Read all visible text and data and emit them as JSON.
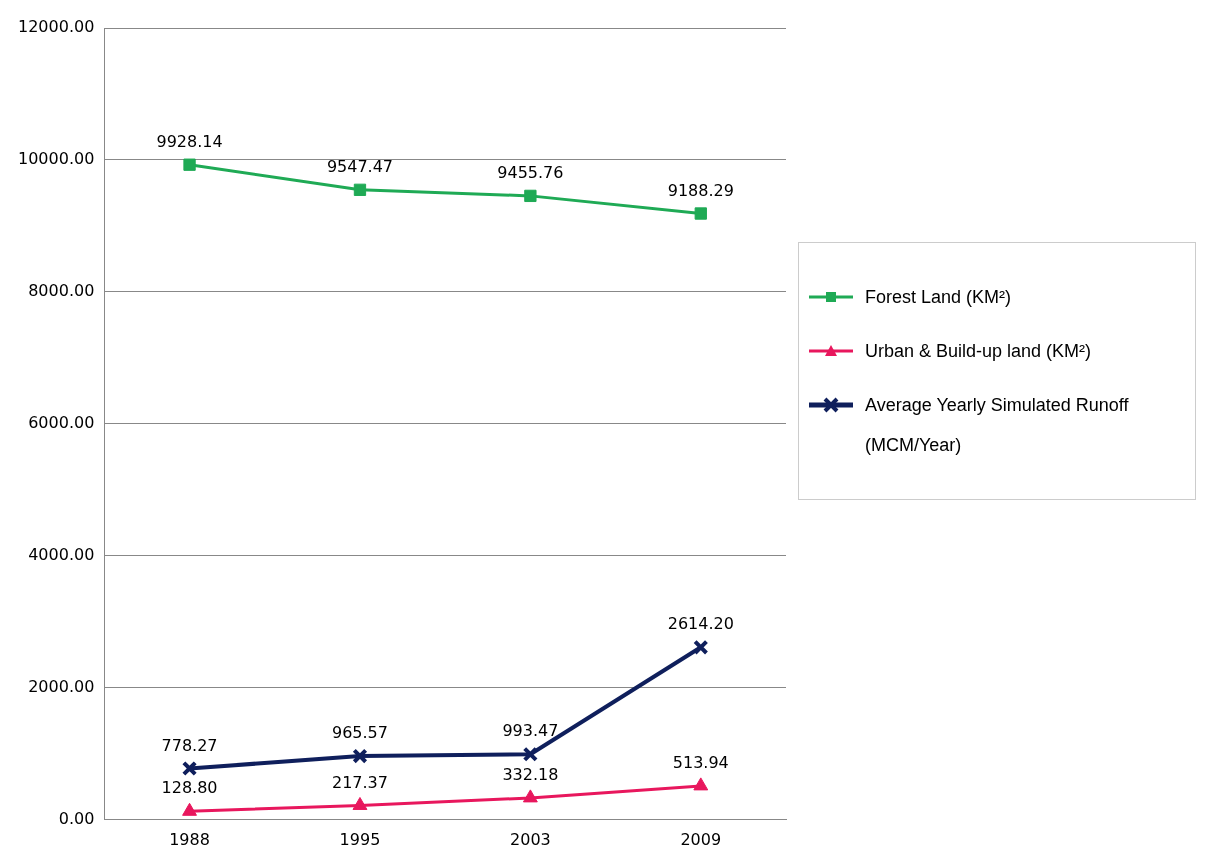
{
  "chart_data": {
    "type": "line",
    "categories": [
      "1988",
      "1995",
      "2003",
      "2009"
    ],
    "series": [
      {
        "name": "Forest Land (KM²)",
        "color": "#1faa55",
        "marker": "square",
        "values": [
          9928.14,
          9547.47,
          9455.76,
          9188.29
        ],
        "value_labels": [
          "9928.14",
          "9547.47",
          "9455.76",
          "9188.29"
        ]
      },
      {
        "name": "Urban & Build-up land (KM²)",
        "color": "#e8175d",
        "marker": "triangle",
        "values": [
          128.8,
          217.37,
          332.18,
          513.94
        ],
        "value_labels": [
          "128.80",
          "217.37",
          "332.18",
          "513.94"
        ]
      },
      {
        "name": "Average Yearly Simulated Runoff (MCM/Year)",
        "color": "#0f1f5c",
        "marker": "cross",
        "values": [
          778.27,
          965.57,
          993.47,
          2614.2
        ],
        "value_labels": [
          "778.27",
          "965.57",
          "993.47",
          "2614.20"
        ]
      }
    ],
    "ylim": [
      0,
      12000
    ],
    "yticks": [
      {
        "value": 0,
        "label": "0.00"
      },
      {
        "value": 2000,
        "label": "2000.00"
      },
      {
        "value": 4000,
        "label": "4000.00"
      },
      {
        "value": 6000,
        "label": "6000.00"
      },
      {
        "value": 8000,
        "label": "8000.00"
      },
      {
        "value": 10000,
        "label": "10000.00"
      },
      {
        "value": 12000,
        "label": "12000.00"
      }
    ],
    "grid": "y",
    "legend": "right",
    "line_style": "solid",
    "data_labels": true
  }
}
